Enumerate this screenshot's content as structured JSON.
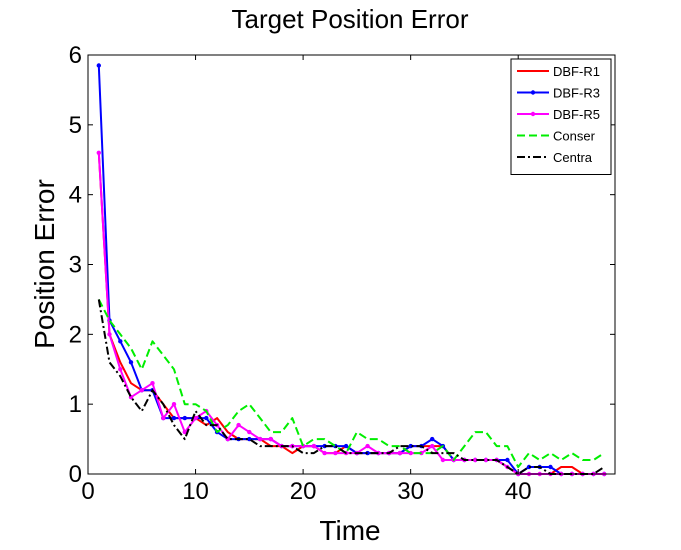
{
  "chart_data": {
    "type": "line",
    "title": "Target Position Error",
    "xlabel": "Time",
    "ylabel": "Position Error",
    "xlim": [
      0,
      49
    ],
    "ylim": [
      0,
      6
    ],
    "xticks": [
      0,
      10,
      20,
      30,
      40
    ],
    "yticks": [
      0,
      1,
      2,
      3,
      4,
      5,
      6
    ],
    "grid": false,
    "legend_position": "top-right",
    "x": [
      1,
      2,
      3,
      4,
      5,
      6,
      7,
      8,
      9,
      10,
      11,
      12,
      13,
      14,
      15,
      16,
      17,
      18,
      19,
      20,
      21,
      22,
      23,
      24,
      25,
      26,
      27,
      28,
      29,
      30,
      31,
      32,
      33,
      34,
      35,
      36,
      37,
      38,
      39,
      40,
      41,
      42,
      43,
      44,
      45,
      46,
      47,
      48
    ],
    "series": [
      {
        "name": "DBF-R1",
        "color": "#ff0000",
        "style": "solid",
        "marker": "none",
        "values": [
          4.6,
          2.0,
          1.6,
          1.3,
          1.2,
          1.2,
          1.0,
          0.8,
          0.8,
          0.8,
          0.7,
          0.8,
          0.6,
          0.5,
          0.5,
          0.5,
          0.4,
          0.4,
          0.3,
          0.4,
          0.4,
          0.3,
          0.3,
          0.4,
          0.3,
          0.3,
          0.3,
          0.3,
          0.3,
          0.4,
          0.4,
          0.4,
          0.4,
          0.2,
          0.2,
          0.2,
          0.2,
          0.2,
          0.1,
          0.0,
          0.0,
          0.0,
          0.0,
          0.1,
          0.1,
          0.0,
          0.0,
          0.0
        ]
      },
      {
        "name": "DBF-R3",
        "color": "#0000ff",
        "style": "solid",
        "marker": "dot",
        "values": [
          5.85,
          2.2,
          1.9,
          1.6,
          1.2,
          1.2,
          0.8,
          0.8,
          0.8,
          0.8,
          0.8,
          0.6,
          0.5,
          0.5,
          0.5,
          0.5,
          0.5,
          0.4,
          0.4,
          0.4,
          0.4,
          0.4,
          0.4,
          0.4,
          0.3,
          0.3,
          0.3,
          0.3,
          0.3,
          0.4,
          0.4,
          0.5,
          0.4,
          0.2,
          0.2,
          0.2,
          0.2,
          0.2,
          0.2,
          0.0,
          0.1,
          0.1,
          0.1,
          0.0,
          0.0,
          0.0,
          0.0,
          0.0
        ]
      },
      {
        "name": "DBF-R5",
        "color": "#ff00ff",
        "style": "solid",
        "marker": "dot",
        "values": [
          4.6,
          2.0,
          1.5,
          1.1,
          1.2,
          1.3,
          0.8,
          1.0,
          0.6,
          0.8,
          0.9,
          0.7,
          0.5,
          0.7,
          0.6,
          0.5,
          0.5,
          0.4,
          0.4,
          0.4,
          0.4,
          0.3,
          0.3,
          0.3,
          0.3,
          0.4,
          0.3,
          0.3,
          0.3,
          0.3,
          0.3,
          0.4,
          0.2,
          0.2,
          0.2,
          0.2,
          0.2,
          0.2,
          0.1,
          0.0,
          0.0,
          0.0,
          0.0,
          0.0,
          0.0,
          0.0,
          0.0,
          0.0
        ]
      },
      {
        "name": "Conser",
        "color": "#00ee00",
        "style": "dashed",
        "marker": "none",
        "values": [
          2.5,
          2.2,
          2.0,
          1.8,
          1.5,
          1.9,
          1.7,
          1.5,
          1.0,
          1.0,
          0.9,
          0.6,
          0.7,
          0.9,
          1.0,
          0.8,
          0.6,
          0.6,
          0.8,
          0.4,
          0.5,
          0.5,
          0.4,
          0.3,
          0.6,
          0.5,
          0.5,
          0.4,
          0.4,
          0.3,
          0.3,
          0.3,
          0.4,
          0.2,
          0.4,
          0.6,
          0.6,
          0.4,
          0.4,
          0.1,
          0.3,
          0.2,
          0.3,
          0.2,
          0.3,
          0.2,
          0.2,
          0.3
        ]
      },
      {
        "name": "Centra",
        "color": "#000000",
        "style": "dashdot",
        "marker": "none",
        "values": [
          2.5,
          1.6,
          1.4,
          1.1,
          0.9,
          1.2,
          1.0,
          0.7,
          0.5,
          0.9,
          0.7,
          0.7,
          0.5,
          0.5,
          0.5,
          0.4,
          0.4,
          0.4,
          0.4,
          0.3,
          0.3,
          0.4,
          0.4,
          0.3,
          0.3,
          0.3,
          0.3,
          0.3,
          0.4,
          0.4,
          0.4,
          0.3,
          0.3,
          0.3,
          0.2,
          0.2,
          0.2,
          0.2,
          0.1,
          0.0,
          0.1,
          0.1,
          0.0,
          0.0,
          0.0,
          0.0,
          0.0,
          0.1
        ]
      }
    ]
  }
}
